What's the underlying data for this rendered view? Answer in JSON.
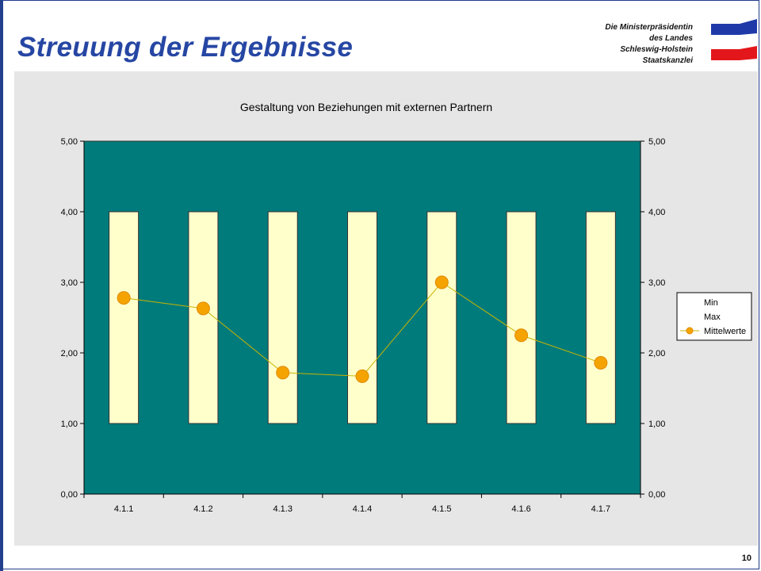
{
  "slide": {
    "title": "Streuung der Ergebnisse",
    "header_lines": [
      "Die Ministerpräsidentin",
      "des Landes",
      "Schleswig-Holstein",
      "Staatskanzlei"
    ],
    "page_number": "10",
    "colors": {
      "title": "#2646a3",
      "flag_blue": "#1f3aa8",
      "flag_red": "#e3171b",
      "chart_background": "#e6e6e6",
      "plot_area": "#007b7b",
      "bar_fill": "#ffffcc",
      "line_marker": "#f5a300",
      "line_stroke": "#c8b400"
    }
  },
  "chart_data": {
    "type": "bar",
    "title": "Gestaltung von Beziehungen mit externen Partnern",
    "categories": [
      "4.1.1",
      "4.1.2",
      "4.1.3",
      "4.1.4",
      "4.1.5",
      "4.1.6",
      "4.1.7"
    ],
    "series": [
      {
        "name": "Min",
        "type": "bar",
        "values": [
          1.0,
          1.0,
          1.0,
          1.0,
          1.0,
          1.0,
          1.0
        ]
      },
      {
        "name": "Max",
        "type": "bar",
        "values": [
          4.0,
          4.0,
          4.0,
          4.0,
          4.0,
          4.0,
          4.0
        ]
      },
      {
        "name": "Mittelwerte",
        "type": "line",
        "values": [
          2.78,
          2.63,
          1.72,
          1.67,
          3.0,
          2.25,
          1.86
        ]
      }
    ],
    "ylim": [
      0,
      5
    ],
    "yticks": [
      "0,00",
      "1,00",
      "2,00",
      "3,00",
      "4,00",
      "5,00"
    ],
    "secondary_yticks": [
      "0,00",
      "1,00",
      "2,00",
      "3,00",
      "4,00",
      "5,00"
    ],
    "legend_position": "right",
    "legend": [
      "Min",
      "Max",
      "Mittelwerte"
    ],
    "grid": false
  }
}
